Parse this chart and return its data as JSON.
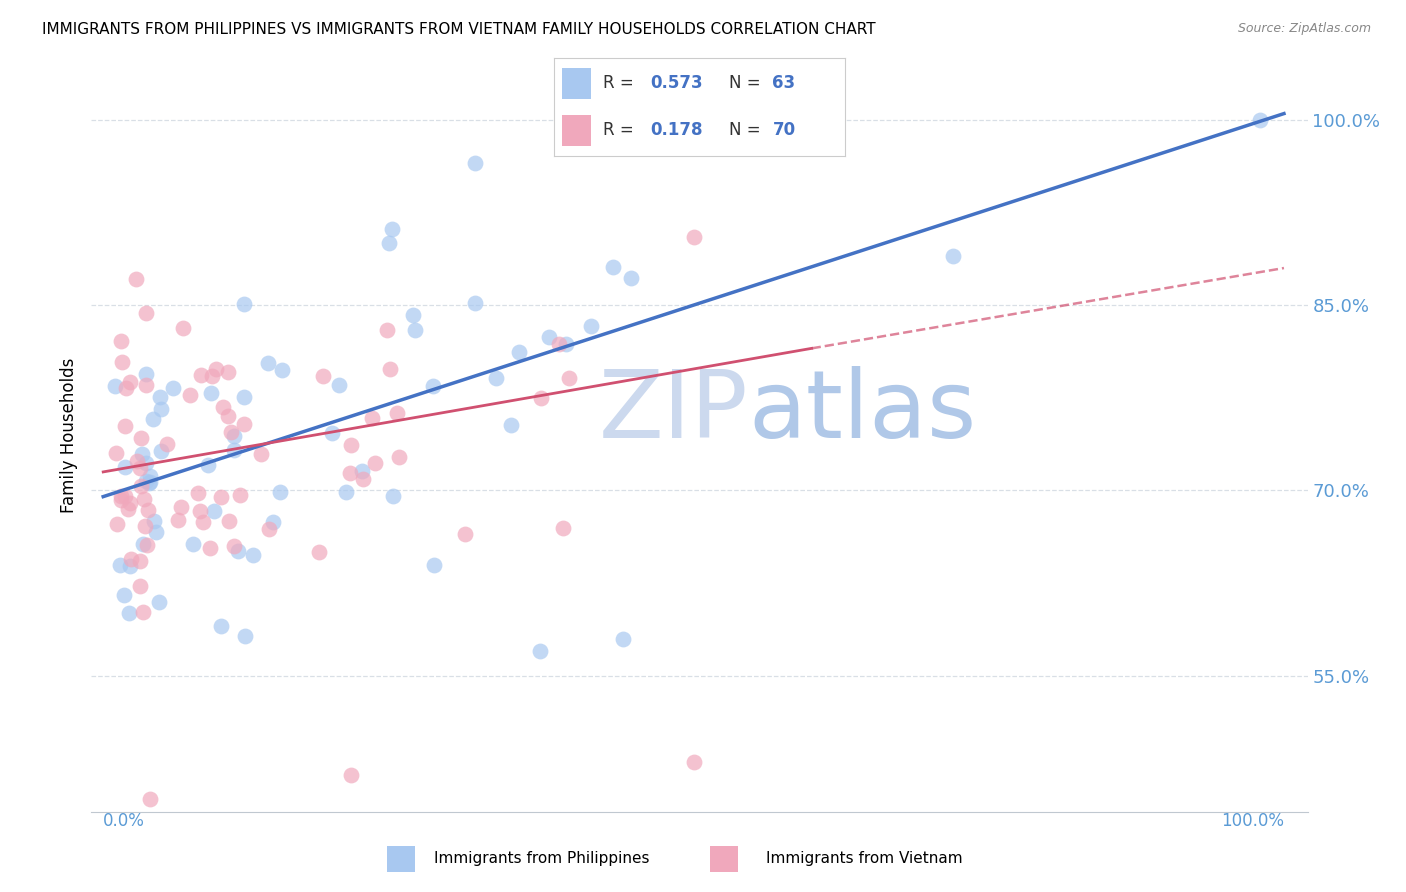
{
  "title": "IMMIGRANTS FROM PHILIPPINES VS IMMIGRANTS FROM VIETNAM FAMILY HOUSEHOLDS CORRELATION CHART",
  "source": "Source: ZipAtlas.com",
  "ylabel": "Family Households",
  "yticks": [
    0.55,
    0.7,
    0.85,
    1.0
  ],
  "ytick_labels": [
    "55.0%",
    "70.0%",
    "85.0%",
    "100.0%"
  ],
  "xlim": [
    -0.01,
    1.02
  ],
  "ylim": [
    0.44,
    1.05
  ],
  "color_philippines": "#a8c8f0",
  "color_vietnam": "#f0a8bc",
  "color_trend_philippines": "#4472c4",
  "color_trend_vietnam": "#d05070",
  "color_axis_labels": "#5b9bd5",
  "color_grid": "#d0d8e0",
  "watermark_zip": "ZIP",
  "watermark_atlas": "atlas",
  "watermark_color_zip": "#d0dff0",
  "watermark_color_atlas": "#b8cce8",
  "trend_ph_x0": 0.0,
  "trend_ph_y0": 0.695,
  "trend_ph_x1": 1.0,
  "trend_ph_y1": 1.005,
  "trend_vn_x0": 0.0,
  "trend_vn_y0": 0.715,
  "trend_vn_x1": 0.6,
  "trend_vn_y1": 0.815,
  "trend_vn_dash_x0": 0.6,
  "trend_vn_dash_y0": 0.815,
  "trend_vn_dash_x1": 1.0,
  "trend_vn_dash_y1": 0.88
}
